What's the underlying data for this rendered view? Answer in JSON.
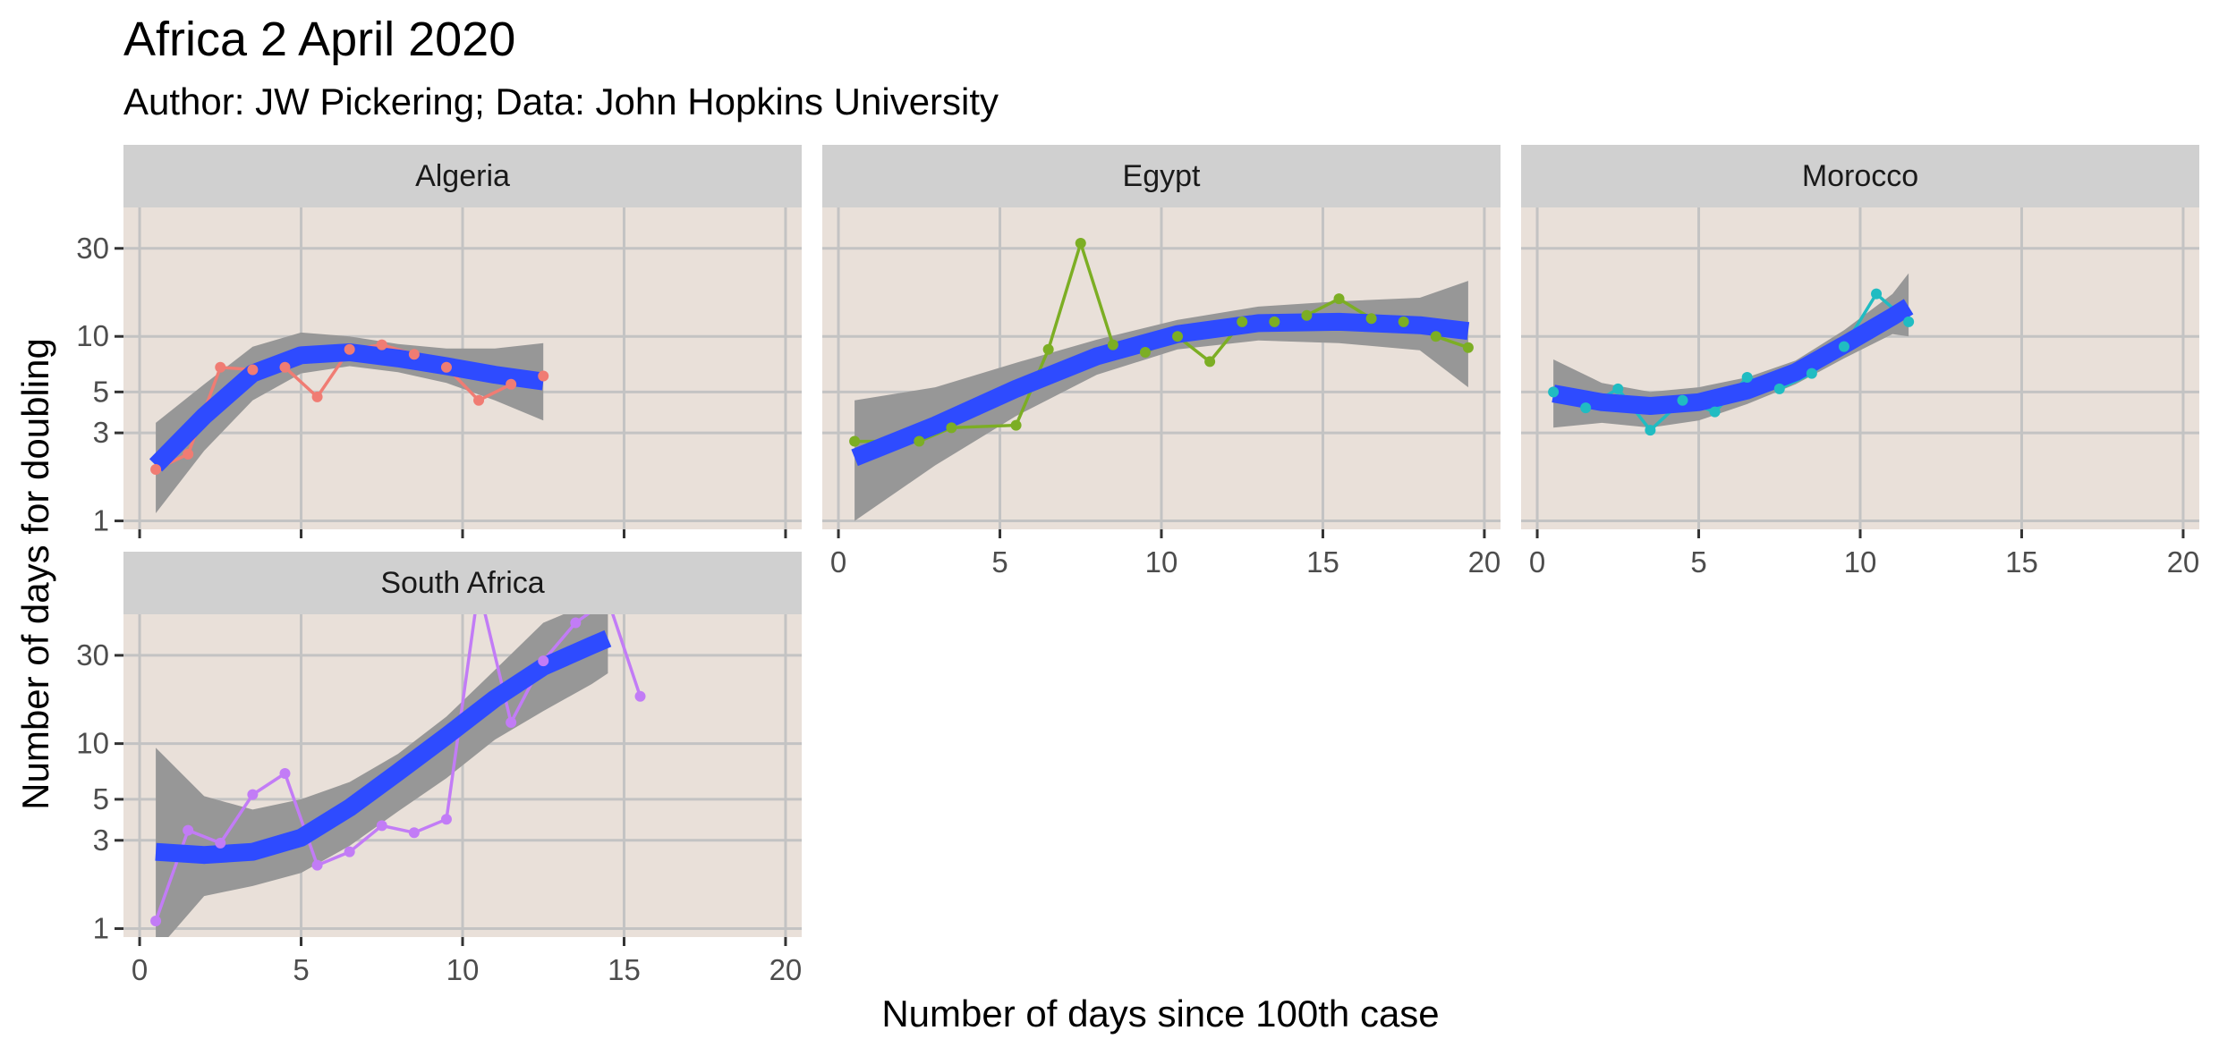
{
  "chart_data": {
    "type": "line",
    "title": "Africa 2 April 2020",
    "subtitle": "Author: JW Pickering; Data: John Hopkins University",
    "xlabel": "Number of days since 100th case",
    "ylabel": "Number of days for doubling",
    "xlim": [
      -0.5,
      20.5
    ],
    "ylim": [
      0.9,
      50
    ],
    "y_scale": "log",
    "x_ticks": [
      0,
      5,
      10,
      15,
      20
    ],
    "y_ticks": [
      1,
      3,
      5,
      10,
      30
    ],
    "grid": true,
    "panel_background": "#E9E0D9",
    "strip_background": "#D0D0D0",
    "grid_color": "#C3C3C3",
    "fit_color": "#2E4BFF",
    "ribbon_color": "#979797",
    "panels": [
      {
        "name": "Algeria",
        "color": "#F07C73",
        "x": [
          0.5,
          1.5,
          2.5,
          3.5,
          4.5,
          5.5,
          6.5,
          7.5,
          8.5,
          9.5,
          10.5,
          11.5,
          12.5
        ],
        "y": [
          1.9,
          2.3,
          6.8,
          6.6,
          6.8,
          4.7,
          8.5,
          9.0,
          8.0,
          6.8,
          4.5,
          5.5,
          6.1
        ],
        "fit_x": [
          0.5,
          2,
          3.5,
          5,
          6.5,
          8,
          9.5,
          11,
          12.5
        ],
        "fit_y": [
          2.0,
          3.7,
          6.3,
          7.9,
          8.2,
          7.6,
          6.9,
          6.2,
          5.7
        ],
        "ribbon_low": [
          1.1,
          2.4,
          4.5,
          6.3,
          6.9,
          6.4,
          5.6,
          4.5,
          3.5
        ],
        "ribbon_high": [
          3.4,
          5.5,
          8.8,
          10.5,
          10.0,
          9.1,
          8.6,
          8.6,
          9.2
        ]
      },
      {
        "name": "Egypt",
        "color": "#7CAE24",
        "x": [
          0.5,
          2.5,
          3.5,
          5.5,
          6.5,
          7.5,
          8.5,
          9.5,
          10.5,
          11.5,
          12.5,
          13.5,
          14.5,
          15.5,
          16.5,
          17.5,
          18.5,
          19.5
        ],
        "y": [
          2.7,
          2.7,
          3.2,
          3.3,
          8.5,
          32,
          9.0,
          8.2,
          10.0,
          7.3,
          12.0,
          12.0,
          13.0,
          16.0,
          12.5,
          12.0,
          10.0,
          8.7
        ],
        "fit_x": [
          0.5,
          3,
          5.5,
          8,
          10.5,
          13,
          15.5,
          18,
          19.5
        ],
        "fit_y": [
          2.2,
          3.3,
          5.2,
          7.8,
          10.3,
          11.8,
          12.0,
          11.5,
          10.7
        ],
        "ribbon_low": [
          1.0,
          2.0,
          3.7,
          6.2,
          8.5,
          9.5,
          9.2,
          8.4,
          5.3
        ],
        "ribbon_high": [
          4.5,
          5.3,
          7.2,
          9.6,
          12.3,
          14.5,
          15.5,
          16.2,
          20.0
        ]
      },
      {
        "name": "Morocco",
        "color": "#20BCC2",
        "x": [
          0.5,
          1.5,
          2.5,
          3.5,
          4.5,
          5.5,
          6.5,
          7.5,
          8.5,
          9.5,
          10.5,
          11.5
        ],
        "y": [
          5.0,
          4.1,
          5.2,
          3.1,
          4.5,
          3.9,
          6.0,
          5.2,
          6.3,
          8.8,
          17.0,
          12.0
        ],
        "fit_x": [
          0.5,
          2,
          3.5,
          5,
          6.5,
          8,
          9.5,
          11,
          11.5
        ],
        "fit_y": [
          4.9,
          4.4,
          4.2,
          4.4,
          5.1,
          6.4,
          9.0,
          12.8,
          14.5
        ],
        "ribbon_low": [
          3.2,
          3.4,
          3.2,
          3.5,
          4.3,
          5.5,
          7.6,
          10.3,
          10.0
        ],
        "ribbon_high": [
          7.5,
          5.6,
          5.0,
          5.3,
          6.0,
          7.4,
          10.8,
          17.0,
          22.0
        ]
      },
      {
        "name": "South Africa",
        "color": "#C27CF6",
        "x": [
          0.5,
          1.5,
          2.5,
          3.5,
          4.5,
          5.5,
          6.5,
          7.5,
          8.5,
          9.5,
          10.5,
          11.5,
          12.5,
          13.5,
          14.5,
          15.5
        ],
        "y": [
          1.1,
          3.4,
          2.9,
          5.3,
          6.9,
          2.2,
          2.6,
          3.6,
          3.3,
          3.9,
          70,
          13.0,
          28.0,
          45.0,
          60,
          18.0
        ],
        "fit_x": [
          0.5,
          2,
          3.5,
          5,
          6.5,
          8,
          9.5,
          11,
          12.5,
          14,
          14.5
        ],
        "fit_y": [
          2.6,
          2.5,
          2.6,
          3.1,
          4.5,
          7.0,
          11.0,
          17.5,
          26.0,
          34.0,
          37.0
        ],
        "ribbon_low": [
          0.75,
          1.5,
          1.7,
          2.0,
          2.8,
          4.3,
          6.5,
          10.5,
          15.0,
          21.0,
          24.0
        ],
        "ribbon_high": [
          9.5,
          5.2,
          4.4,
          5.0,
          6.2,
          8.8,
          14.0,
          25.0,
          45.0,
          58.0,
          60.0
        ]
      }
    ]
  }
}
